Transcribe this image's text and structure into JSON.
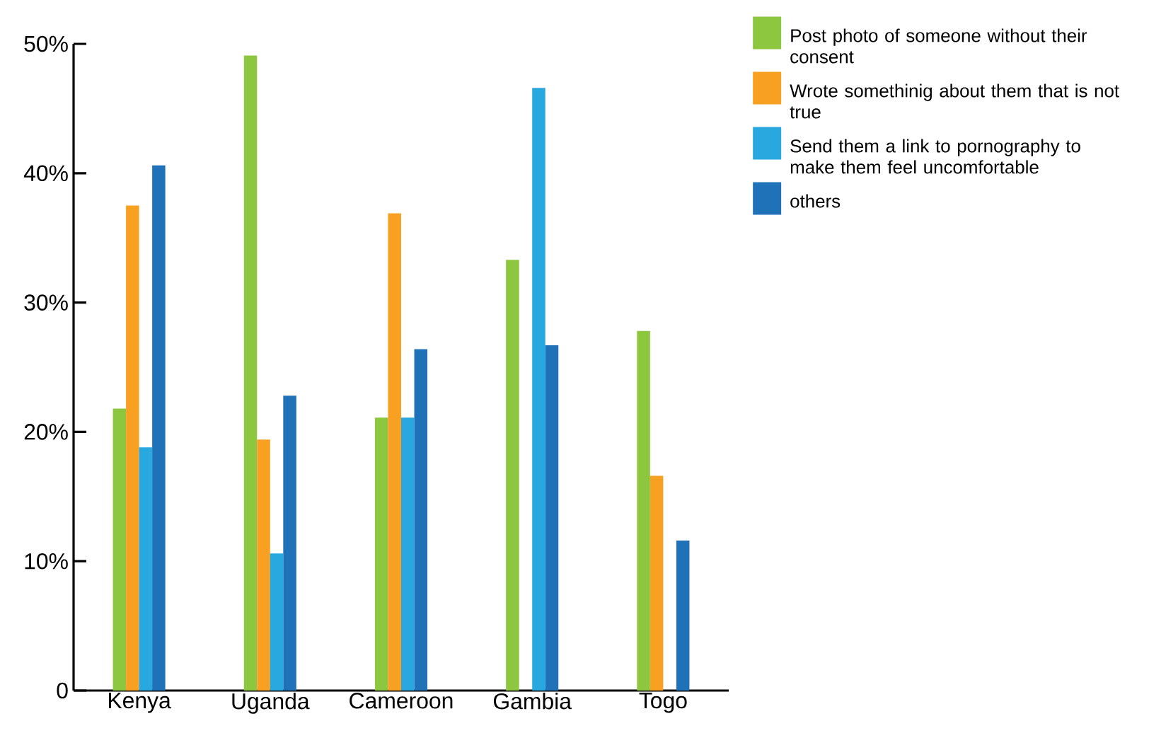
{
  "chart_data": {
    "type": "bar",
    "categories": [
      "Kenya",
      "Uganda",
      "Cameroon",
      "Gambia",
      "Togo"
    ],
    "series": [
      {
        "name": "Post photo of someone without their consent",
        "color": "#8dc63f",
        "values": [
          21.8,
          49.1,
          21.1,
          33.3,
          27.8
        ]
      },
      {
        "name": "Wrote somethinig about them that is not true",
        "color": "#f7a021",
        "values": [
          37.5,
          19.4,
          36.9,
          0,
          16.6
        ]
      },
      {
        "name": "Send them a link to pornography to make them feel uncomfortable",
        "color": "#29a8e0",
        "values": [
          18.8,
          10.6,
          21.1,
          46.6,
          0
        ]
      },
      {
        "name": "others",
        "color": "#1f72b8",
        "values": [
          40.6,
          22.8,
          26.4,
          26.7,
          11.6
        ]
      }
    ],
    "ylim": [
      0,
      50
    ],
    "yticks": [
      0,
      {
        "value": 10,
        "label": "10%"
      },
      {
        "value": 20,
        "label": "20%"
      },
      {
        "value": 30,
        "label": "30%"
      },
      {
        "value": 40,
        "label": "40%"
      },
      {
        "value": 50,
        "label": "50%"
      }
    ],
    "legend": "top right"
  }
}
